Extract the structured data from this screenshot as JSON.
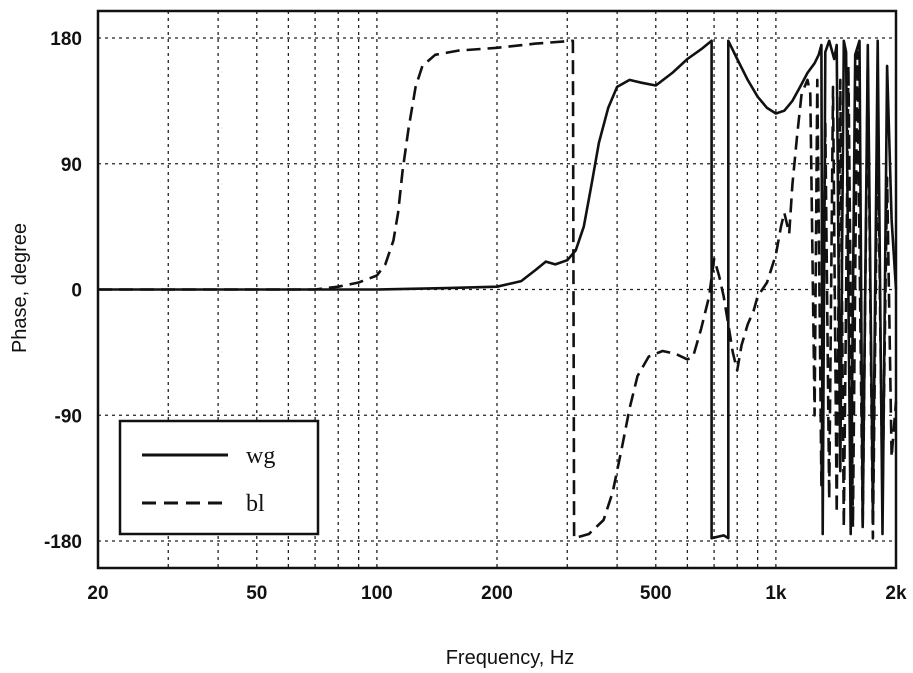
{
  "chart_data": {
    "type": "line",
    "title": "",
    "xlabel": "Frequency, Hz",
    "ylabel": "Phase, degree",
    "xscale": "log",
    "xlim": [
      20,
      2000
    ],
    "ylim": [
      -180,
      180
    ],
    "x_ticks": [
      {
        "value": 20,
        "label": "20"
      },
      {
        "value": 50,
        "label": "50"
      },
      {
        "value": 100,
        "label": "100"
      },
      {
        "value": 200,
        "label": "200"
      },
      {
        "value": 500,
        "label": "500"
      },
      {
        "value": 1000,
        "label": "1k"
      },
      {
        "value": 2000,
        "label": "2k"
      }
    ],
    "y_ticks": [
      {
        "value": 180,
        "label": "180"
      },
      {
        "value": 90,
        "label": "90"
      },
      {
        "value": 0,
        "label": "0"
      },
      {
        "value": -90,
        "label": "-90"
      },
      {
        "value": -180,
        "label": "-180"
      }
    ],
    "grid": true,
    "legend_position": "bottom-left",
    "series": [
      {
        "name": "wg",
        "style": "solid",
        "color": "#111111",
        "points": [
          [
            20,
            0
          ],
          [
            100,
            0
          ],
          [
            150,
            1
          ],
          [
            200,
            2
          ],
          [
            230,
            6
          ],
          [
            250,
            14
          ],
          [
            265,
            20
          ],
          [
            280,
            18
          ],
          [
            300,
            21
          ],
          [
            315,
            28
          ],
          [
            330,
            45
          ],
          [
            345,
            75
          ],
          [
            360,
            105
          ],
          [
            380,
            130
          ],
          [
            400,
            145
          ],
          [
            430,
            150
          ],
          [
            460,
            148
          ],
          [
            500,
            146
          ],
          [
            550,
            155
          ],
          [
            600,
            165
          ],
          [
            650,
            172
          ],
          [
            690,
            178
          ],
          [
            690,
            -178
          ],
          [
            740,
            -176
          ],
          [
            760,
            -178
          ],
          [
            760,
            178
          ],
          [
            800,
            165
          ],
          [
            850,
            150
          ],
          [
            900,
            138
          ],
          [
            950,
            130
          ],
          [
            1000,
            126
          ],
          [
            1050,
            128
          ],
          [
            1100,
            135
          ],
          [
            1150,
            145
          ],
          [
            1200,
            155
          ],
          [
            1250,
            162
          ],
          [
            1280,
            168
          ],
          [
            1300,
            175
          ],
          [
            1310,
            -175
          ],
          [
            1330,
            170
          ],
          [
            1360,
            178
          ],
          [
            1400,
            165
          ],
          [
            1420,
            175
          ],
          [
            1450,
            -130
          ],
          [
            1480,
            178
          ],
          [
            1500,
            170
          ],
          [
            1540,
            -175
          ],
          [
            1580,
            168
          ],
          [
            1620,
            178
          ],
          [
            1650,
            -170
          ],
          [
            1700,
            175
          ],
          [
            1750,
            -160
          ],
          [
            1800,
            178
          ],
          [
            1850,
            -175
          ],
          [
            1900,
            160
          ],
          [
            1950,
            50
          ],
          [
            2000,
            0
          ]
        ]
      },
      {
        "name": "bl",
        "style": "dashed",
        "color": "#111111",
        "points": [
          [
            20,
            0
          ],
          [
            70,
            0
          ],
          [
            80,
            2
          ],
          [
            90,
            5
          ],
          [
            100,
            10
          ],
          [
            105,
            18
          ],
          [
            110,
            35
          ],
          [
            113,
            55
          ],
          [
            116,
            85
          ],
          [
            120,
            115
          ],
          [
            125,
            145
          ],
          [
            130,
            160
          ],
          [
            140,
            168
          ],
          [
            160,
            171
          ],
          [
            200,
            173
          ],
          [
            250,
            176
          ],
          [
            310,
            178
          ],
          [
            312,
            -178
          ],
          [
            340,
            -175
          ],
          [
            370,
            -165
          ],
          [
            390,
            -145
          ],
          [
            410,
            -115
          ],
          [
            430,
            -85
          ],
          [
            450,
            -62
          ],
          [
            480,
            -48
          ],
          [
            520,
            -44
          ],
          [
            560,
            -46
          ],
          [
            600,
            -50
          ],
          [
            620,
            -48
          ],
          [
            650,
            -28
          ],
          [
            680,
            -5
          ],
          [
            700,
            22
          ],
          [
            720,
            10
          ],
          [
            740,
            -5
          ],
          [
            760,
            -25
          ],
          [
            780,
            -45
          ],
          [
            800,
            -58
          ],
          [
            820,
            -40
          ],
          [
            850,
            -25
          ],
          [
            880,
            -15
          ],
          [
            900,
            -5
          ],
          [
            950,
            5
          ],
          [
            1000,
            25
          ],
          [
            1030,
            45
          ],
          [
            1050,
            55
          ],
          [
            1080,
            40
          ],
          [
            1100,
            75
          ],
          [
            1130,
            110
          ],
          [
            1160,
            140
          ],
          [
            1200,
            150
          ],
          [
            1220,
            140
          ],
          [
            1250,
            -90
          ],
          [
            1270,
            150
          ],
          [
            1300,
            -140
          ],
          [
            1330,
            120
          ],
          [
            1360,
            -150
          ],
          [
            1390,
            145
          ],
          [
            1420,
            -160
          ],
          [
            1450,
            150
          ],
          [
            1480,
            -170
          ],
          [
            1520,
            160
          ],
          [
            1560,
            -170
          ],
          [
            1600,
            170
          ],
          [
            1650,
            -170
          ],
          [
            1700,
            160
          ],
          [
            1750,
            -178
          ],
          [
            1800,
            120
          ],
          [
            1850,
            -150
          ],
          [
            1900,
            80
          ],
          [
            1950,
            -120
          ],
          [
            2000,
            -80
          ]
        ]
      }
    ]
  }
}
